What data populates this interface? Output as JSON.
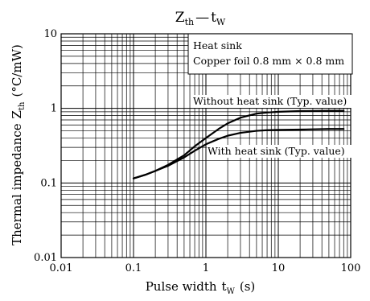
{
  "chart_data": {
    "type": "line",
    "title": "Z",
    "title_sub_1": "th",
    "title_dash": "—",
    "title_t": "t",
    "title_sub_2": "W",
    "ylabel": "Thermal impedance",
    "ylabel_z": "Z",
    "ylabel_sub": "th",
    "ylabel_unit": "(°C/mW)",
    "xlabel": "Pulse width",
    "xlabel_t": "t",
    "xlabel_sub": "W",
    "xlabel_unit": "(s)",
    "x_scale": "log",
    "y_scale": "log",
    "xlim": [
      0.01,
      100
    ],
    "ylim": [
      0.01,
      10
    ],
    "grid": true,
    "x_ticks": [
      {
        "value": 0.01,
        "label": "0.01"
      },
      {
        "value": 0.1,
        "label": "0.1"
      },
      {
        "value": 1,
        "label": "1"
      },
      {
        "value": 10,
        "label": "10"
      },
      {
        "value": 100,
        "label": "100"
      }
    ],
    "y_ticks": [
      {
        "value": 0.01,
        "label": "0.01"
      },
      {
        "value": 0.1,
        "label": "0.1"
      },
      {
        "value": 1,
        "label": "1"
      },
      {
        "value": 10,
        "label": "10"
      }
    ],
    "legend": {
      "line1": "Heat sink",
      "line2": "Copper foil 0.8 mm × 0.8 mm",
      "position": "top-right"
    },
    "series": [
      {
        "name": "Without heat sink (Typ. value)",
        "x": [
          0.1,
          0.15,
          0.2,
          0.3,
          0.5,
          0.7,
          1,
          1.5,
          2,
          3,
          5,
          7,
          10,
          20,
          50,
          80
        ],
        "y": [
          0.115,
          0.13,
          0.145,
          0.175,
          0.235,
          0.31,
          0.4,
          0.53,
          0.63,
          0.75,
          0.85,
          0.88,
          0.9,
          0.92,
          0.93,
          0.93
        ]
      },
      {
        "name": "With heat sink (Typ. value)",
        "x": [
          0.1,
          0.15,
          0.2,
          0.3,
          0.5,
          0.7,
          1,
          1.5,
          2,
          3,
          5,
          7,
          10,
          20,
          50,
          80
        ],
        "y": [
          0.115,
          0.13,
          0.145,
          0.17,
          0.22,
          0.27,
          0.33,
          0.39,
          0.43,
          0.47,
          0.5,
          0.51,
          0.515,
          0.52,
          0.53,
          0.53
        ]
      }
    ]
  }
}
